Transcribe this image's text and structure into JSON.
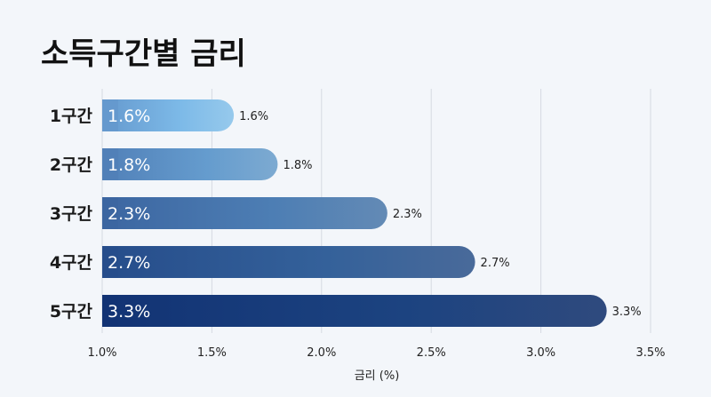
{
  "chart_data": {
    "type": "bar",
    "orientation": "horizontal",
    "title": "소득구간별 금리",
    "xlabel": "금리 (%)",
    "ylabel": "",
    "categories": [
      "1구간",
      "2구간",
      "3구간",
      "4구간",
      "5구간"
    ],
    "values": [
      1.6,
      1.8,
      2.3,
      2.7,
      3.3
    ],
    "value_labels": [
      "1.6%",
      "1.8%",
      "2.3%",
      "2.7%",
      "3.3%"
    ],
    "xlim": [
      1.0,
      3.5
    ],
    "xticks": [
      1.0,
      1.5,
      2.0,
      2.5,
      3.0,
      3.5
    ],
    "xtick_labels": [
      "1.0%",
      "1.5%",
      "2.0%",
      "2.5%",
      "3.0%",
      "3.5%"
    ],
    "grid": "vertical",
    "legend": "none",
    "colors": {
      "background": "#f3f6fa",
      "bar_light": "#8ec4ea",
      "bar_dark": "#0d2660",
      "grid": "#d5dae2"
    }
  }
}
